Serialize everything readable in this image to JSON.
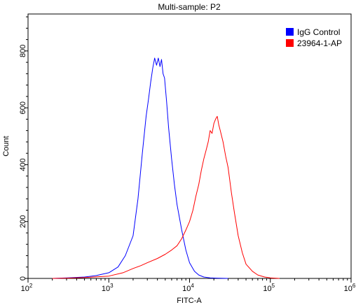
{
  "chart_data": {
    "type": "line",
    "title": "Multi-sample: P2",
    "xlabel": "FITC-A",
    "ylabel": "Count",
    "x_scale": "log",
    "xlim": [
      100,
      1000000
    ],
    "ylim": [
      0,
      930
    ],
    "x_ticks": [
      {
        "value": 100,
        "base": "10",
        "exp": "2"
      },
      {
        "value": 1000,
        "base": "10",
        "exp": "3"
      },
      {
        "value": 10000,
        "base": "10",
        "exp": "4"
      },
      {
        "value": 100000,
        "base": "10",
        "exp": "5"
      },
      {
        "value": 1000000,
        "base": "10",
        "exp": "6"
      }
    ],
    "y_ticks": [
      0,
      200,
      400,
      600,
      800
    ],
    "grid": false,
    "legend_position": "top-right",
    "series": [
      {
        "name": "IgG Control",
        "color": "#0000ff",
        "x": [
          200,
          300,
          500,
          700,
          1000,
          1300,
          1600,
          2000,
          2300,
          2600,
          2900,
          3100,
          3300,
          3500,
          3700,
          3900,
          4100,
          4300,
          4500,
          4700,
          4900,
          5200,
          5500,
          6000,
          6500,
          7000,
          8000,
          9000,
          10000,
          11500,
          13000,
          15000,
          18000,
          22000,
          30000
        ],
        "y": [
          0,
          2,
          5,
          10,
          20,
          40,
          80,
          150,
          280,
          440,
          570,
          630,
          690,
          740,
          775,
          750,
          775,
          745,
          770,
          720,
          705,
          620,
          530,
          420,
          330,
          260,
          170,
          100,
          55,
          25,
          12,
          5,
          2,
          1,
          0
        ]
      },
      {
        "name": "23964-1-AP",
        "color": "#ff0000",
        "x": [
          200,
          300,
          500,
          1000,
          1500,
          2000,
          2500,
          3000,
          4000,
          5000,
          6000,
          7000,
          8000,
          9000,
          10000,
          11000,
          12000,
          13000,
          14000,
          15000,
          16000,
          17000,
          18000,
          19000,
          20000,
          21000,
          22000,
          23000,
          24000,
          26000,
          28000,
          30000,
          33000,
          36000,
          40000,
          45000,
          50000,
          60000,
          70000,
          85000,
          100000,
          130000
        ],
        "y": [
          0,
          1,
          3,
          8,
          20,
          35,
          45,
          55,
          70,
          85,
          100,
          115,
          140,
          170,
          200,
          240,
          290,
          330,
          380,
          420,
          450,
          480,
          520,
          510,
          545,
          560,
          570,
          540,
          520,
          480,
          430,
          390,
          300,
          230,
          150,
          90,
          50,
          25,
          12,
          5,
          2,
          0
        ]
      }
    ]
  }
}
